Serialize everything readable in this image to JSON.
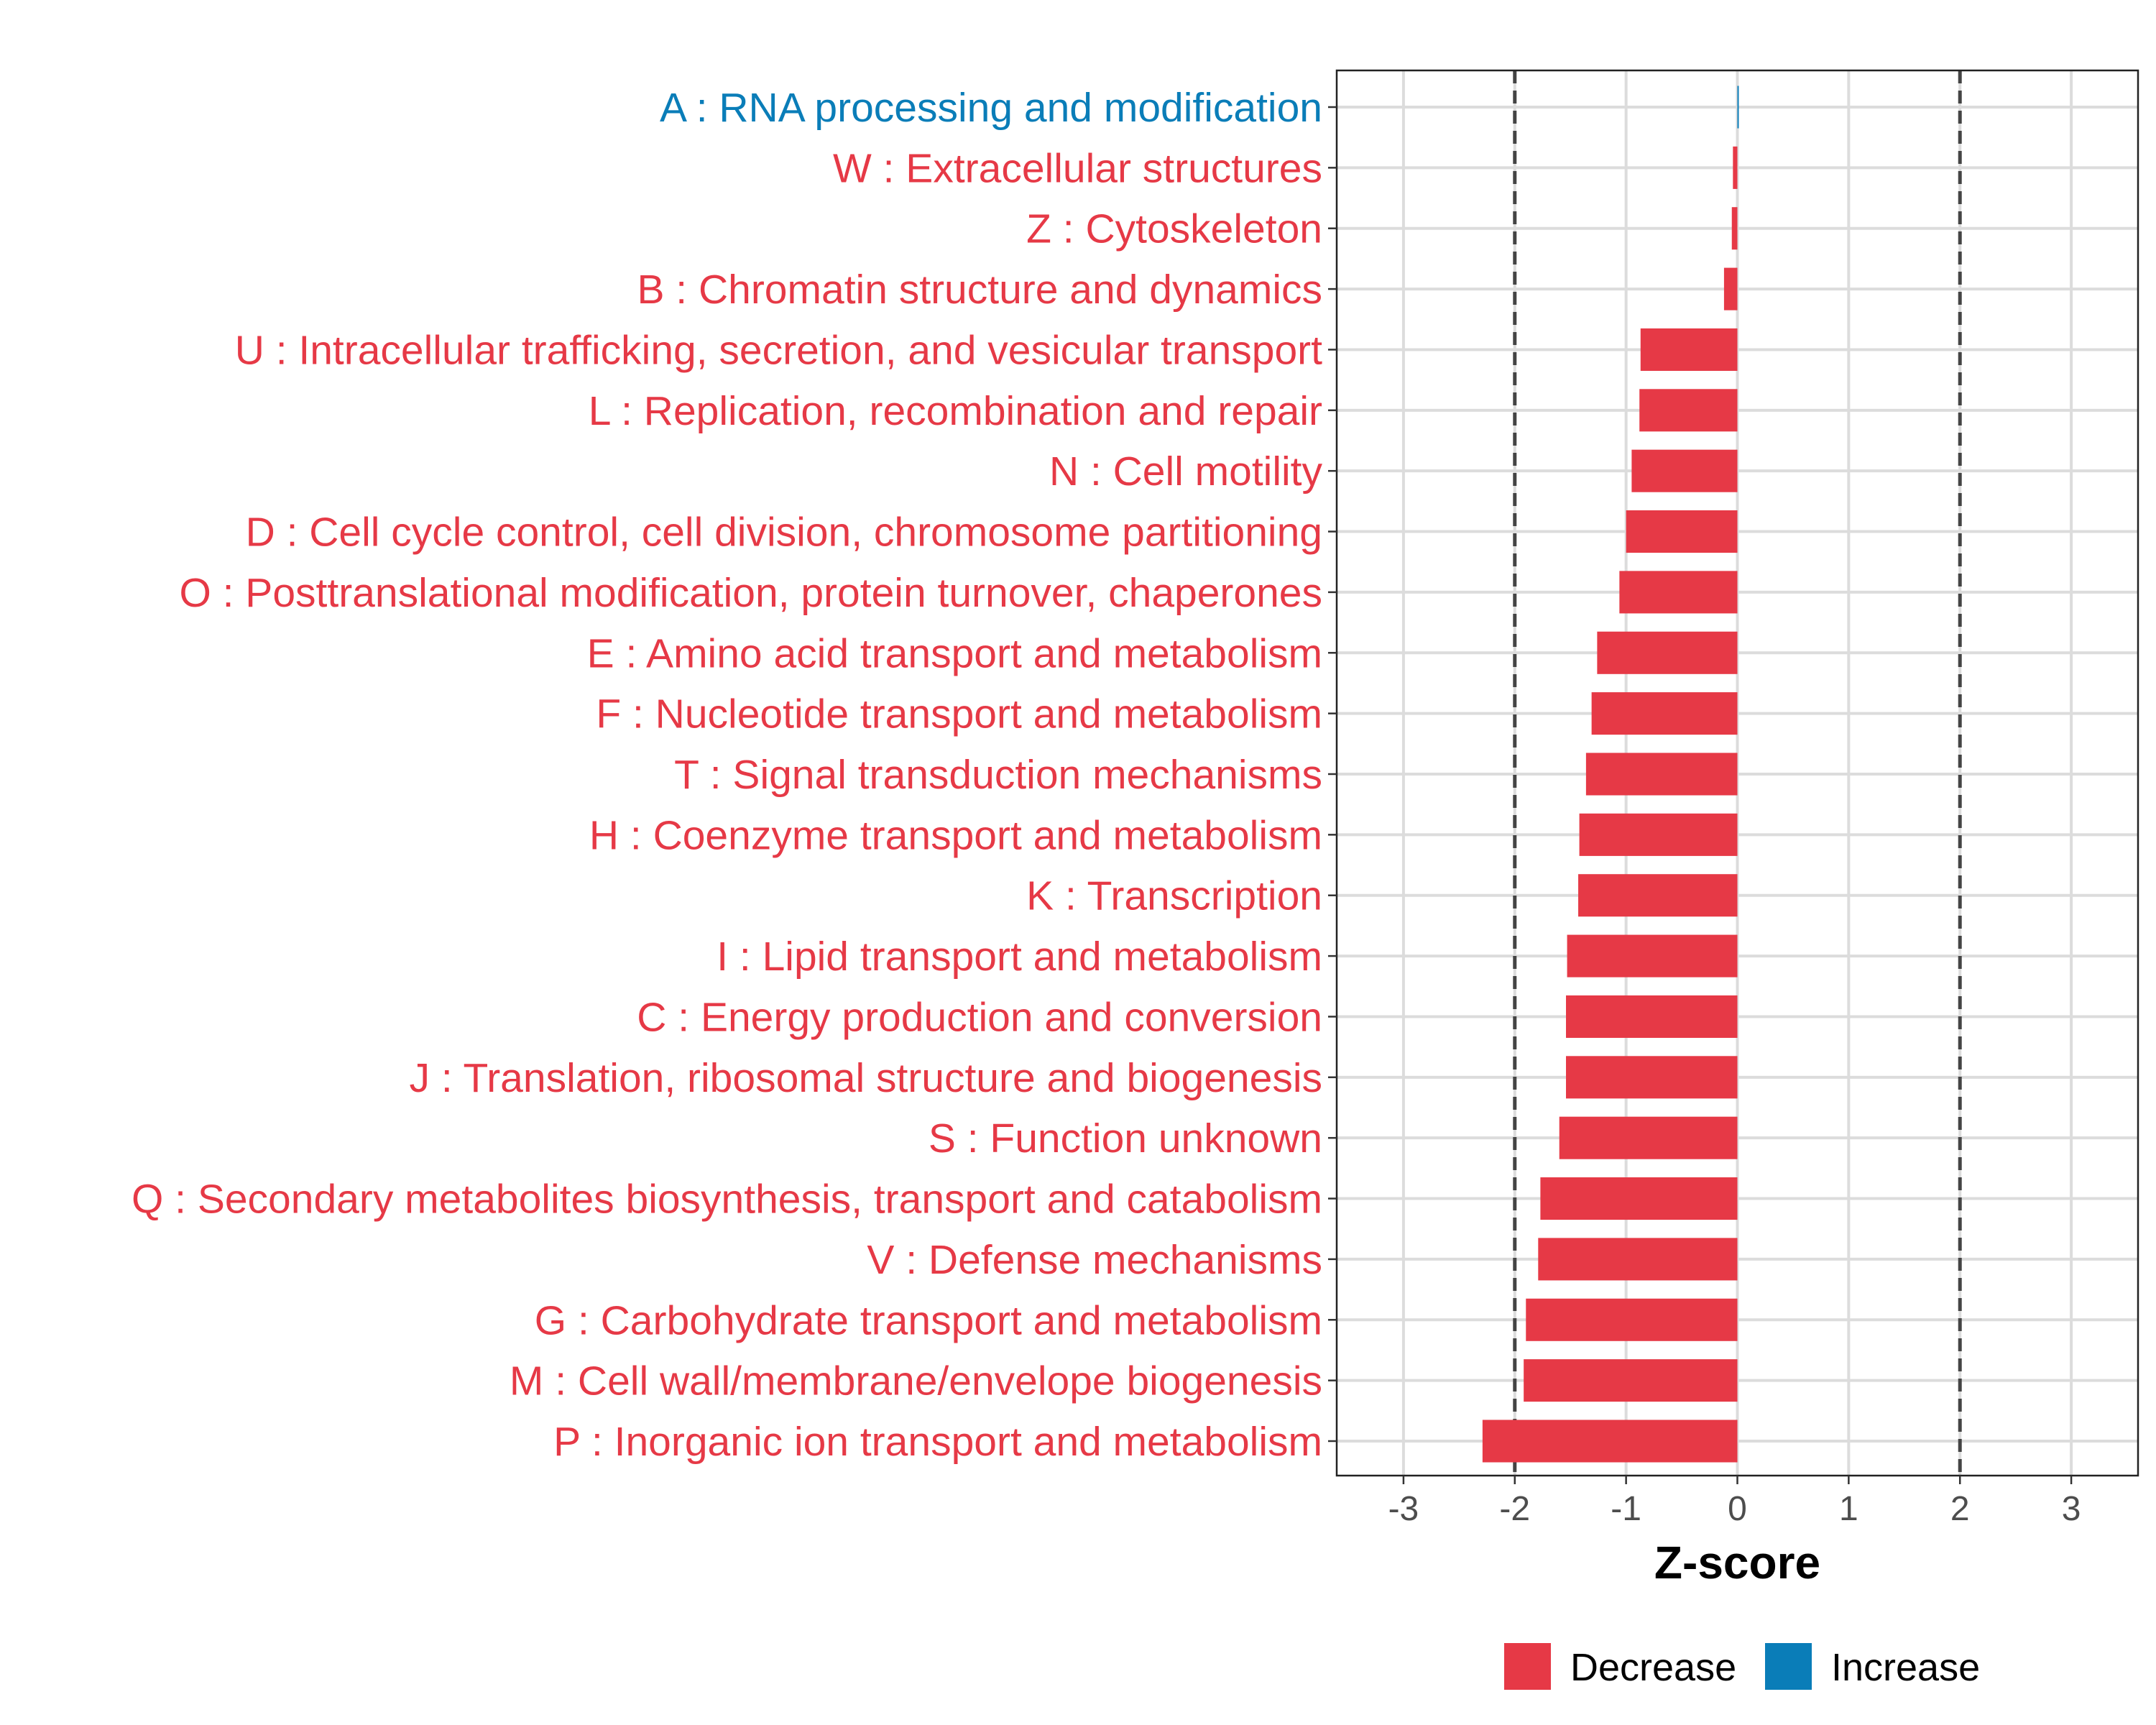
{
  "chart_data": {
    "type": "bar",
    "orientation": "horizontal",
    "xlabel": "Z-score",
    "ylabel": "",
    "xlim": [
      -3.6,
      3.6
    ],
    "xticks": [
      -3,
      -2,
      -1,
      0,
      1,
      2,
      3
    ],
    "reference_lines": [
      -2,
      2
    ],
    "grid": true,
    "legend_position": "bottom",
    "legend": [
      {
        "label": "Decrease",
        "color": "#E63946"
      },
      {
        "label": "Increase",
        "color": "#0A7DB8"
      }
    ],
    "categories": [
      "A : RNA processing and modification",
      "W : Extracellular structures",
      "Z : Cytoskeleton",
      "B : Chromatin structure and dynamics",
      "U : Intracellular trafficking, secretion, and vesicular transport",
      "L : Replication, recombination and repair",
      "N : Cell motility",
      "D : Cell cycle control, cell division, chromosome partitioning",
      "O : Posttranslational modification, protein turnover, chaperones",
      "E : Amino acid transport and metabolism",
      "F : Nucleotide transport and metabolism",
      "T : Signal transduction mechanisms",
      "H : Coenzyme transport and metabolism",
      "K : Transcription",
      "I : Lipid transport and metabolism",
      "C : Energy production and conversion",
      "J : Translation, ribosomal structure and biogenesis",
      "S : Function unknown",
      "Q : Secondary metabolites biosynthesis, transport and catabolism",
      "V : Defense mechanisms",
      "G : Carbohydrate transport and metabolism",
      "M : Cell wall/membrane/envelope biogenesis",
      "P : Inorganic ion transport and metabolism"
    ],
    "values": [
      0.005,
      -0.04,
      -0.05,
      -0.12,
      -0.87,
      -0.88,
      -0.95,
      -1.0,
      -1.06,
      -1.26,
      -1.31,
      -1.36,
      -1.42,
      -1.43,
      -1.53,
      -1.54,
      -1.54,
      -1.6,
      -1.77,
      -1.79,
      -1.9,
      -1.92,
      -2.29
    ],
    "groups": [
      "Increase",
      "Decrease",
      "Decrease",
      "Decrease",
      "Decrease",
      "Decrease",
      "Decrease",
      "Decrease",
      "Decrease",
      "Decrease",
      "Decrease",
      "Decrease",
      "Decrease",
      "Decrease",
      "Decrease",
      "Decrease",
      "Decrease",
      "Decrease",
      "Decrease",
      "Decrease",
      "Decrease",
      "Decrease",
      "Decrease"
    ]
  }
}
